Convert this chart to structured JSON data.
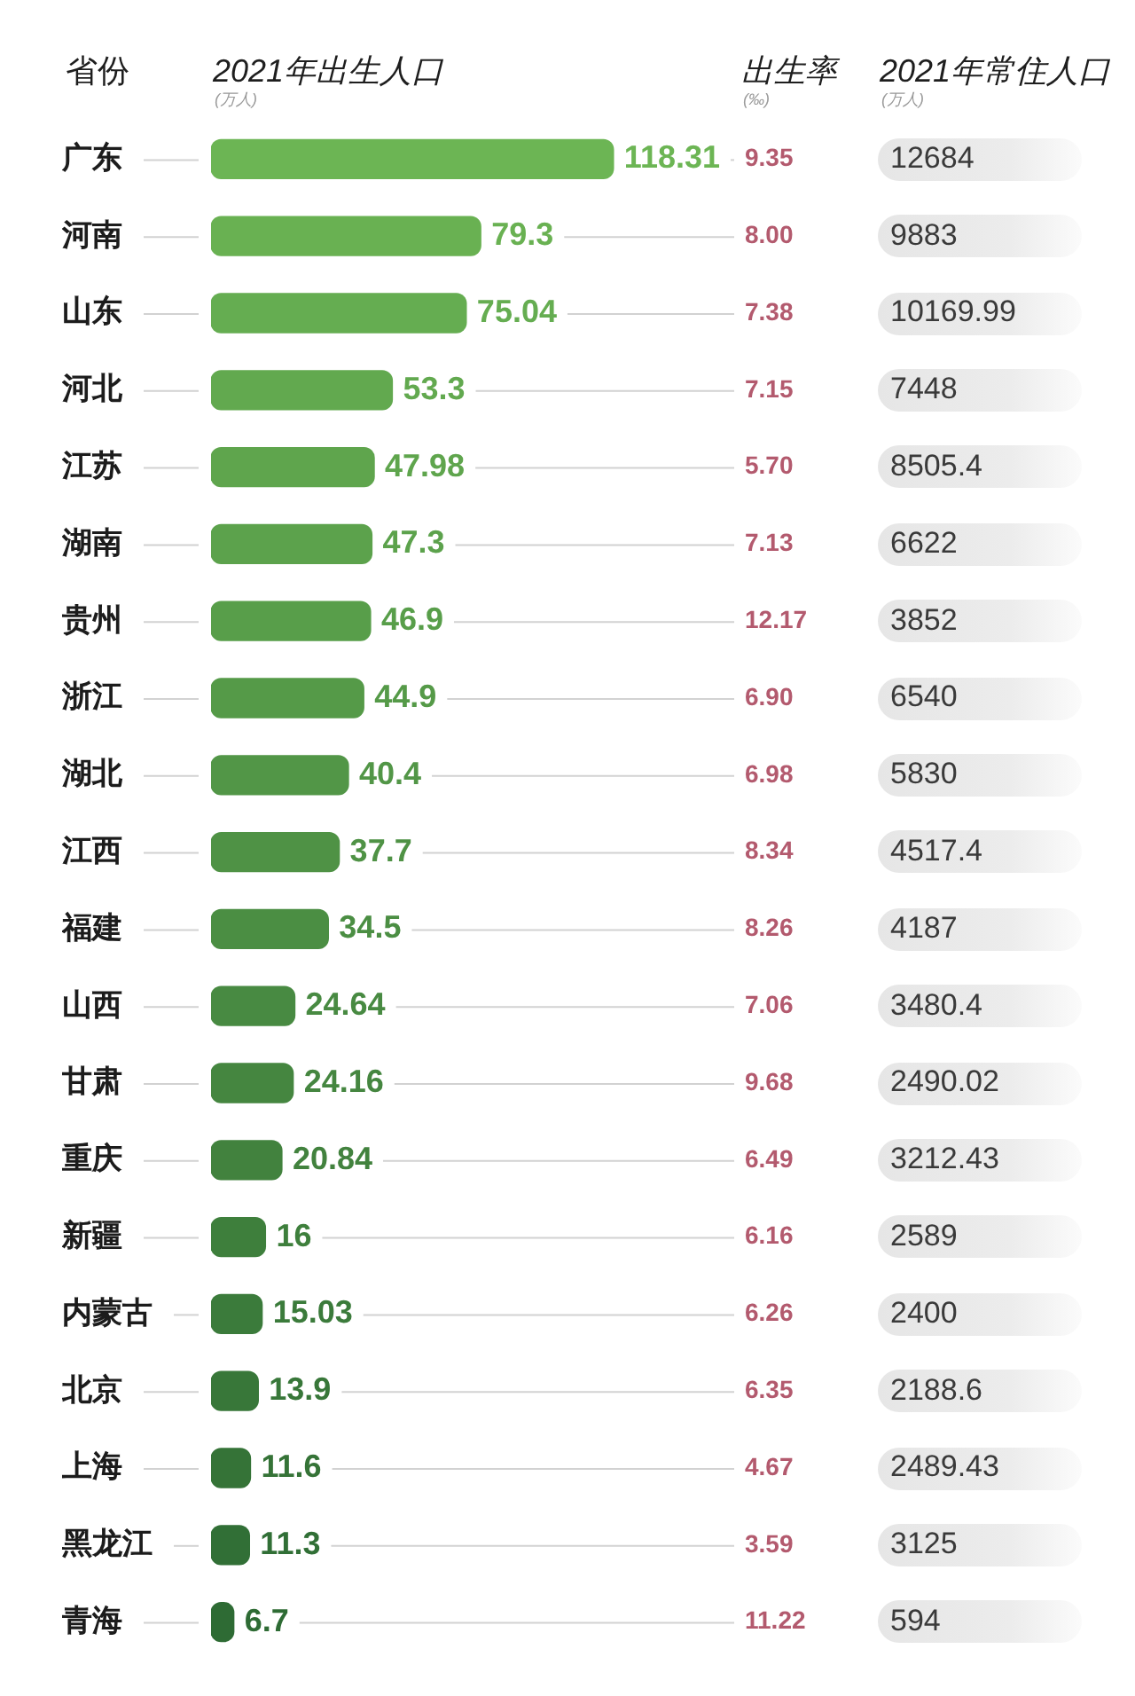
{
  "chart_data": [
    {
      "type": "bar",
      "orientation": "horizontal",
      "title": "2021年出生人口",
      "subtitle": "(万人)",
      "ylabel": "省份",
      "categories": [
        "广东",
        "河南",
        "山东",
        "河北",
        "江苏",
        "湖南",
        "贵州",
        "浙江",
        "湖北",
        "江西",
        "福建",
        "山西",
        "甘肃",
        "重庆",
        "新疆",
        "内蒙古",
        "北京",
        "上海",
        "黑龙江",
        "青海"
      ],
      "values": [
        118.31,
        79.3,
        75.04,
        53.3,
        47.98,
        47.3,
        46.9,
        44.9,
        40.4,
        37.7,
        34.5,
        24.64,
        24.16,
        20.84,
        16,
        15.03,
        13.9,
        11.6,
        11.3,
        6.7
      ],
      "colors": [
        "#6cb554",
        "#69b152",
        "#65ad51",
        "#62a94f",
        "#5fa54d",
        "#5ca24c",
        "#589e4a",
        "#559a48",
        "#529647",
        "#4f9245",
        "#4b8e43",
        "#488a42",
        "#458640",
        "#42823e",
        "#3e7f3c",
        "#3b7b3b",
        "#387739",
        "#357337",
        "#316f36",
        "#2e6b34"
      ],
      "data_labels": true,
      "grid": "y",
      "tick_labels": "y"
    },
    {
      "type": "other",
      "title": "出生率",
      "subtitle": "(‰)",
      "values": [
        9.35,
        8.0,
        7.38,
        7.15,
        5.7,
        7.13,
        12.17,
        6.9,
        6.98,
        8.34,
        8.26,
        7.06,
        9.68,
        6.49,
        6.16,
        6.26,
        6.35,
        4.67,
        3.59,
        11.22
      ],
      "value_labels": [
        "9.35",
        "8.00",
        "7.38",
        "7.15",
        "5.70",
        "7.13",
        "12.17",
        "6.90",
        "6.98",
        "8.34",
        "8.26",
        "7.06",
        "9.68",
        "6.49",
        "6.16",
        "6.26",
        "6.35",
        "4.67",
        "3.59",
        "11.22"
      ],
      "color": "#b35a6e"
    },
    {
      "type": "other",
      "title": "2021年常住人口",
      "subtitle": "(万人)",
      "values": [
        12684,
        9883,
        10169.99,
        7448,
        8505.4,
        6622,
        3852,
        6540,
        5830,
        4517.4,
        4187,
        3480.4,
        2490.02,
        3212.43,
        2589,
        2400,
        2188.6,
        2489.43,
        3125,
        594
      ],
      "data_labels": true,
      "color": "#3a3a3a"
    }
  ]
}
